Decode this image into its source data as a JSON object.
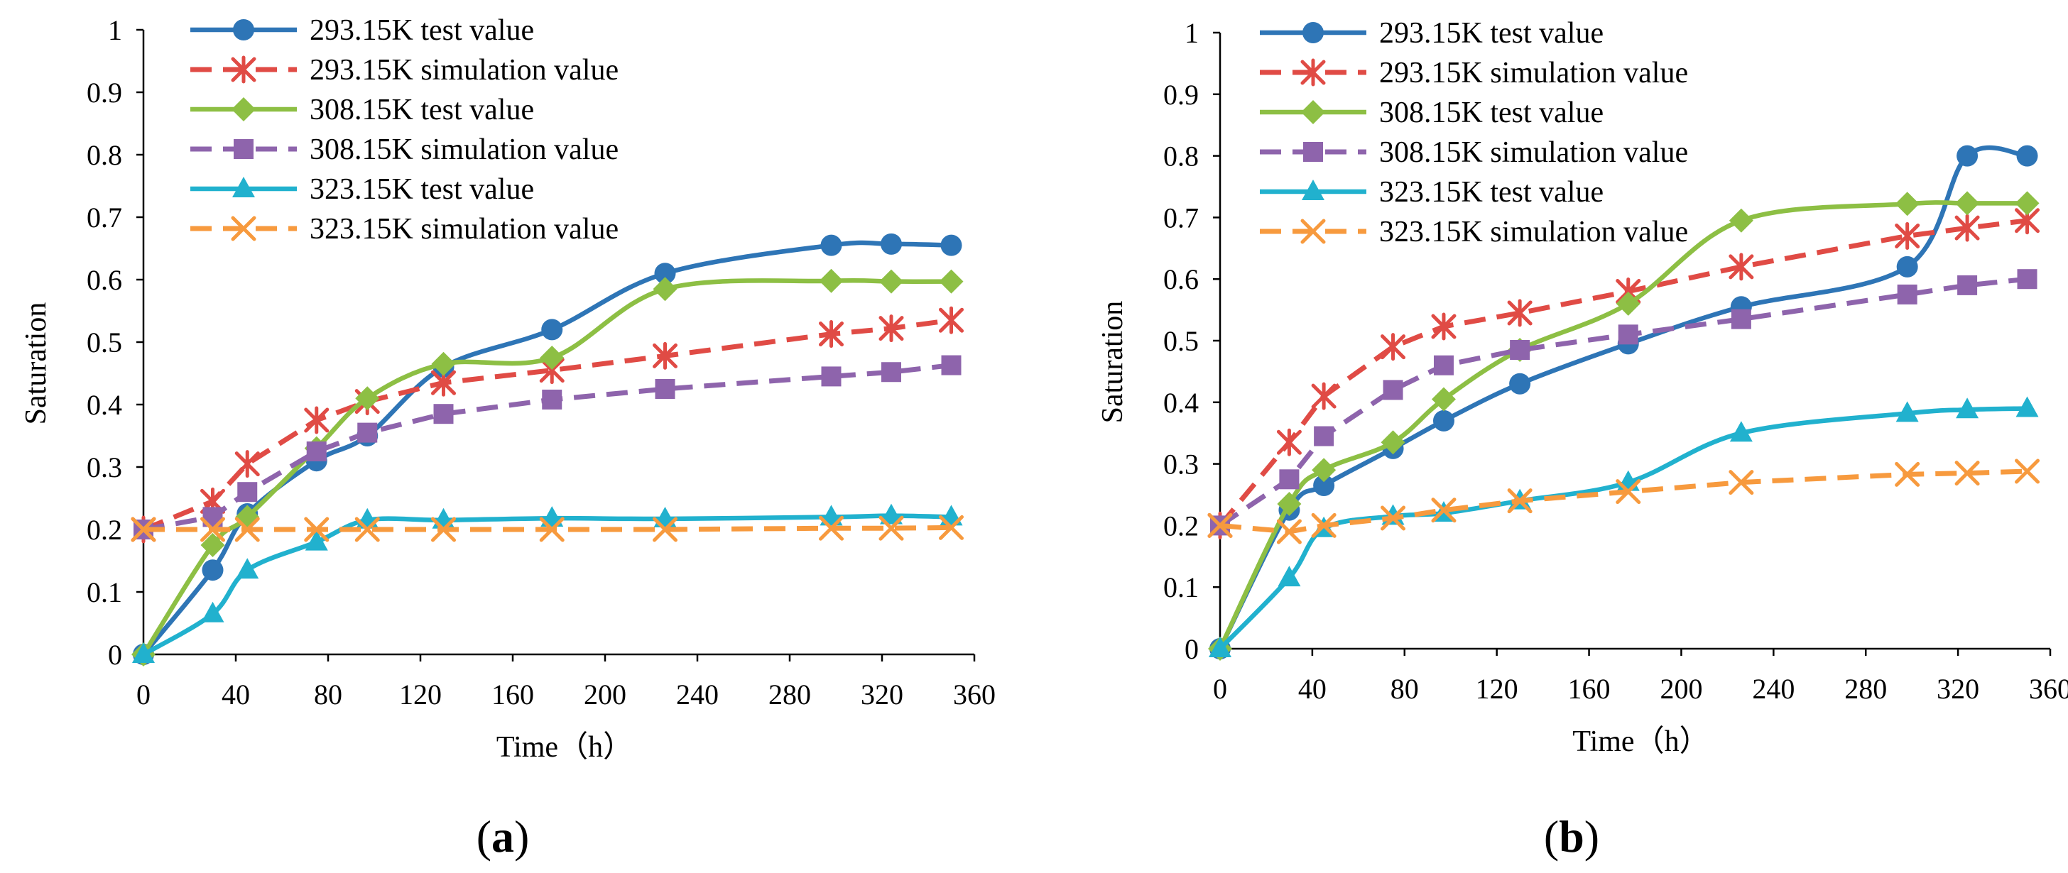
{
  "colors": {
    "axis": "#000000",
    "s293_test": "#2E75B6",
    "s293_sim": "#E04B45",
    "s308_test": "#8DBF44",
    "s308_sim": "#8E64AC",
    "s323_test": "#21B1CE",
    "s323_sim": "#F79A3E"
  },
  "chart_data": [
    {
      "type": "line",
      "panel_label": "a",
      "title": "",
      "xlabel": "Time（h）",
      "ylabel": "Saturation",
      "xlim": [
        0,
        360
      ],
      "ylim": [
        0,
        1
      ],
      "x_ticks": [
        0,
        40,
        80,
        120,
        160,
        200,
        240,
        280,
        320,
        360
      ],
      "y_ticks": [
        0,
        0.1,
        0.2,
        0.3,
        0.4,
        0.5,
        0.6,
        0.7,
        0.8,
        0.9,
        1
      ],
      "grid": false,
      "legend_position": "top-left",
      "series": [
        {
          "name": "293.15K test value",
          "color_key": "s293_test",
          "style": "solid",
          "marker": "circle",
          "x": [
            0,
            30,
            45,
            75,
            97,
            130,
            177,
            226,
            298,
            324,
            350
          ],
          "y": [
            0,
            0.135,
            0.225,
            0.31,
            0.35,
            0.46,
            0.52,
            0.61,
            0.655,
            0.657,
            0.655
          ]
        },
        {
          "name": "293.15K simulation value",
          "color_key": "s293_sim",
          "style": "dashed",
          "marker": "asterisk",
          "x": [
            0,
            30,
            45,
            75,
            97,
            130,
            177,
            226,
            298,
            324,
            350
          ],
          "y": [
            0.2,
            0.245,
            0.305,
            0.375,
            0.405,
            0.435,
            0.455,
            0.478,
            0.513,
            0.522,
            0.535
          ]
        },
        {
          "name": "308.15K test value",
          "color_key": "s308_test",
          "style": "solid",
          "marker": "diamond",
          "x": [
            0,
            30,
            45,
            75,
            97,
            130,
            177,
            226,
            298,
            324,
            350
          ],
          "y": [
            0,
            0.175,
            0.22,
            0.33,
            0.41,
            0.465,
            0.475,
            0.585,
            0.598,
            0.597,
            0.597
          ]
        },
        {
          "name": "308.15K simulation value",
          "color_key": "s308_sim",
          "style": "dashed",
          "marker": "square",
          "x": [
            0,
            30,
            45,
            75,
            97,
            130,
            177,
            226,
            298,
            324,
            350
          ],
          "y": [
            0.2,
            0.22,
            0.26,
            0.325,
            0.355,
            0.385,
            0.408,
            0.425,
            0.445,
            0.452,
            0.463
          ]
        },
        {
          "name": "323.15K test value",
          "color_key": "s323_test",
          "style": "solid",
          "marker": "triangle",
          "x": [
            0,
            30,
            45,
            75,
            97,
            130,
            177,
            226,
            298,
            324,
            350
          ],
          "y": [
            0,
            0.065,
            0.135,
            0.18,
            0.215,
            0.215,
            0.218,
            0.217,
            0.22,
            0.222,
            0.22
          ]
        },
        {
          "name": "323.15K simulation value",
          "color_key": "s323_sim",
          "style": "dashed",
          "marker": "x",
          "x": [
            0,
            30,
            45,
            75,
            97,
            130,
            177,
            226,
            298,
            324,
            350
          ],
          "y": [
            0.2,
            0.2,
            0.2,
            0.2,
            0.2,
            0.2,
            0.2,
            0.2,
            0.202,
            0.202,
            0.203
          ]
        }
      ]
    },
    {
      "type": "line",
      "panel_label": "b",
      "title": "",
      "xlabel": "Time（h）",
      "ylabel": "Saturation",
      "xlim": [
        0,
        360
      ],
      "ylim": [
        0,
        1
      ],
      "x_ticks": [
        0,
        40,
        80,
        120,
        160,
        200,
        240,
        280,
        320,
        360
      ],
      "y_ticks": [
        0,
        0.1,
        0.2,
        0.3,
        0.4,
        0.5,
        0.6,
        0.7,
        0.8,
        0.9,
        1
      ],
      "grid": false,
      "legend_position": "top-left",
      "series": [
        {
          "name": "293.15K test value",
          "color_key": "s293_test",
          "style": "solid",
          "marker": "circle",
          "x": [
            0,
            30,
            45,
            75,
            97,
            130,
            177,
            226,
            298,
            324,
            350
          ],
          "y": [
            0,
            0.225,
            0.265,
            0.325,
            0.37,
            0.43,
            0.495,
            0.555,
            0.62,
            0.8,
            0.8
          ]
        },
        {
          "name": "293.15K simulation value",
          "color_key": "s293_sim",
          "style": "dashed",
          "marker": "asterisk",
          "x": [
            0,
            30,
            45,
            75,
            97,
            130,
            177,
            226,
            298,
            324,
            350
          ],
          "y": [
            0.2,
            0.335,
            0.41,
            0.49,
            0.523,
            0.545,
            0.58,
            0.62,
            0.67,
            0.683,
            0.695
          ]
        },
        {
          "name": "308.15K test value",
          "color_key": "s308_test",
          "style": "solid",
          "marker": "diamond",
          "x": [
            0,
            30,
            45,
            75,
            97,
            130,
            177,
            226,
            298,
            324,
            350
          ],
          "y": [
            0,
            0.235,
            0.29,
            0.335,
            0.405,
            0.485,
            0.56,
            0.695,
            0.722,
            0.723,
            0.723
          ]
        },
        {
          "name": "308.15K simulation value",
          "color_key": "s308_sim",
          "style": "dashed",
          "marker": "square",
          "x": [
            0,
            30,
            45,
            75,
            97,
            130,
            177,
            226,
            298,
            324,
            350
          ],
          "y": [
            0.2,
            0.275,
            0.345,
            0.42,
            0.46,
            0.485,
            0.51,
            0.535,
            0.575,
            0.59,
            0.6
          ]
        },
        {
          "name": "323.15K test value",
          "color_key": "s323_test",
          "style": "solid",
          "marker": "triangle",
          "x": [
            0,
            30,
            45,
            75,
            97,
            130,
            177,
            226,
            298,
            324,
            350
          ],
          "y": [
            0,
            0.115,
            0.195,
            0.215,
            0.22,
            0.24,
            0.27,
            0.35,
            0.382,
            0.388,
            0.39
          ]
        },
        {
          "name": "323.15K simulation value",
          "color_key": "s323_sim",
          "style": "dashed",
          "marker": "x",
          "x": [
            0,
            30,
            45,
            75,
            97,
            130,
            177,
            226,
            298,
            324,
            350
          ],
          "y": [
            0.2,
            0.19,
            0.2,
            0.212,
            0.225,
            0.24,
            0.255,
            0.27,
            0.283,
            0.285,
            0.288
          ]
        }
      ]
    }
  ]
}
